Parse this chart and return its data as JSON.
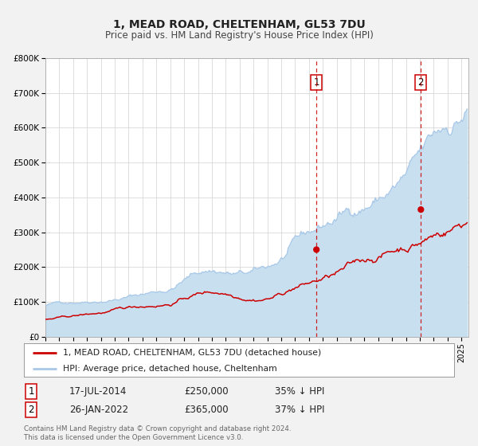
{
  "title": "1, MEAD ROAD, CHELTENHAM, GL53 7DU",
  "subtitle": "Price paid vs. HM Land Registry's House Price Index (HPI)",
  "ylim": [
    0,
    800000
  ],
  "yticks": [
    0,
    100000,
    200000,
    300000,
    400000,
    500000,
    600000,
    700000,
    800000
  ],
  "ytick_labels": [
    "£0",
    "£100K",
    "£200K",
    "£300K",
    "£400K",
    "£500K",
    "£600K",
    "£700K",
    "£800K"
  ],
  "xlim_start": 1995.0,
  "xlim_end": 2025.5,
  "hpi_color": "#a8c8e8",
  "hpi_fill_color": "#c8dff0",
  "price_color": "#cc0000",
  "vline_color": "#cc0000",
  "background_color": "#f2f2f2",
  "plot_bg_color": "#ffffff",
  "grid_color": "#d0d0d0",
  "title_fontsize": 10,
  "subtitle_fontsize": 8.5,
  "legend_label_price": "1, MEAD ROAD, CHELTENHAM, GL53 7DU (detached house)",
  "legend_label_hpi": "HPI: Average price, detached house, Cheltenham",
  "sale1_date": 2014.54,
  "sale1_price": 250000,
  "sale1_label": "1",
  "sale2_date": 2022.07,
  "sale2_price": 365000,
  "sale2_label": "2",
  "footer_text1": "Contains HM Land Registry data © Crown copyright and database right 2024.",
  "footer_text2": "This data is licensed under the Open Government Licence v3.0.",
  "table_row1": [
    "1",
    "17-JUL-2014",
    "£250,000",
    "35% ↓ HPI"
  ],
  "table_row2": [
    "2",
    "26-JAN-2022",
    "£365,000",
    "37% ↓ HPI"
  ]
}
